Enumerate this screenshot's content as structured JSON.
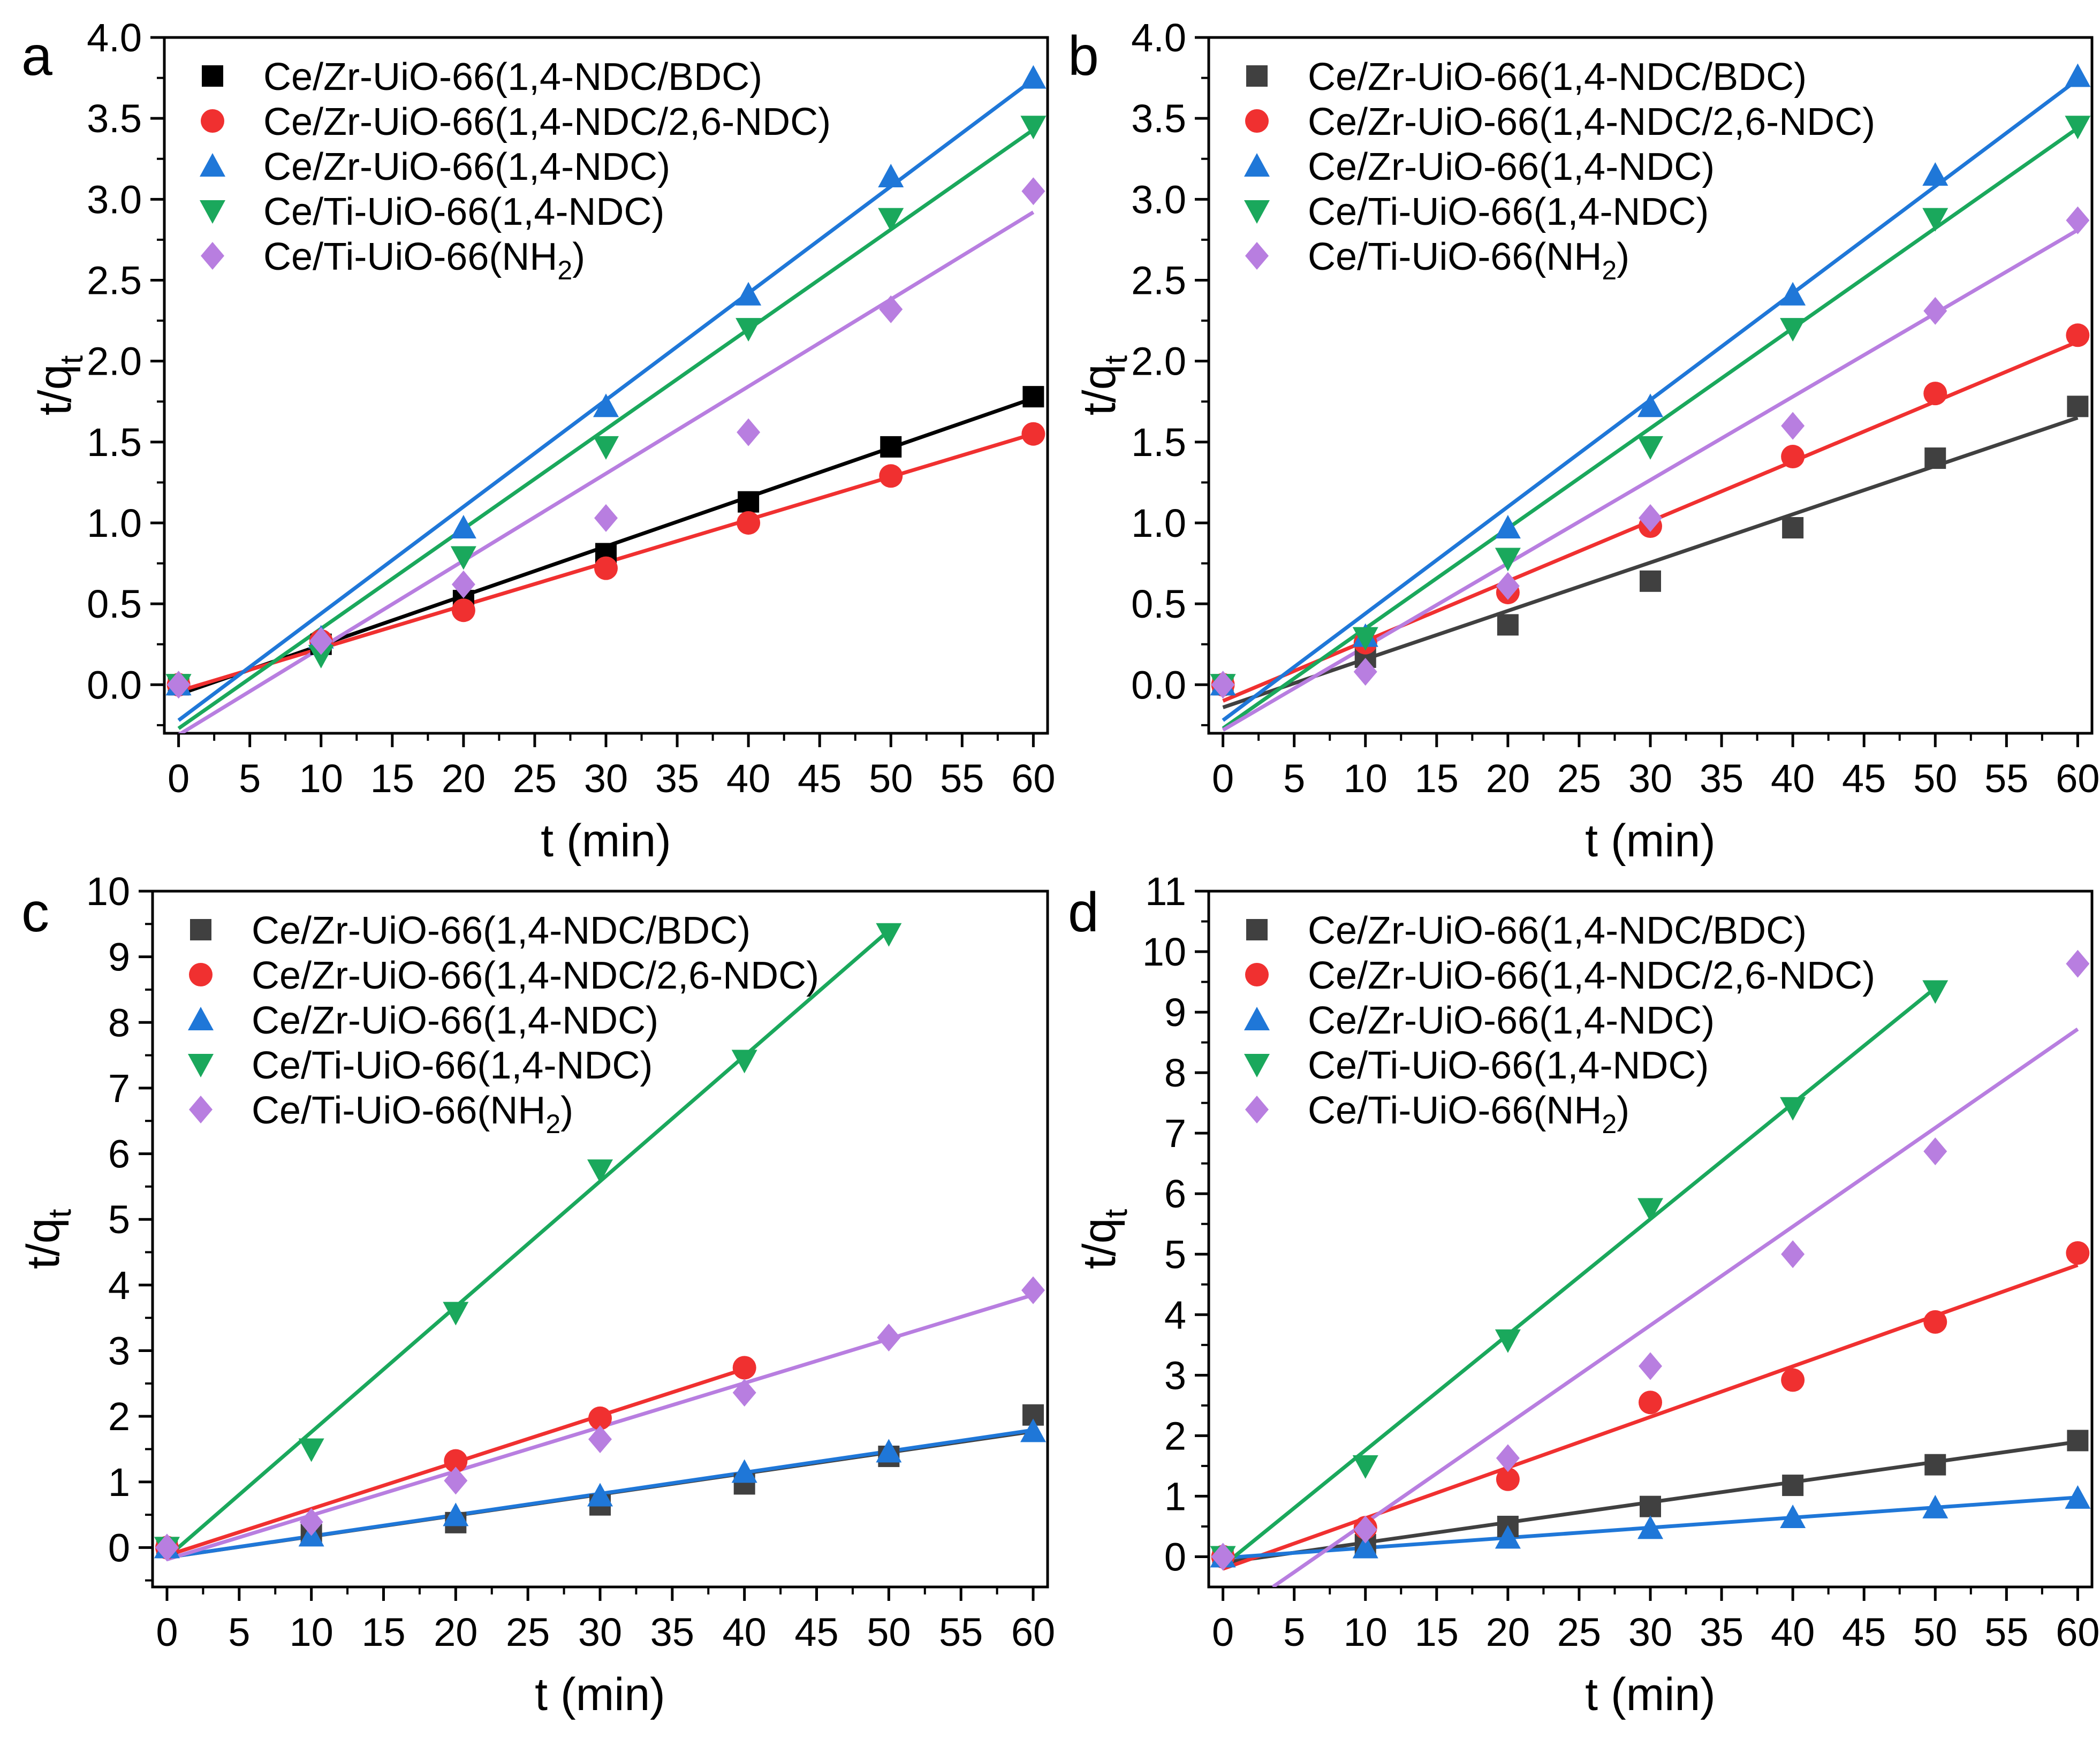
{
  "colors": {
    "Ce/Zr-UiO-66(1,4-NDC/BDC)": "#404040",
    "Ce/Zr-UiO-66(1,4-NDC/2,6-NDC)": "#f03030",
    "Ce/Zr-UiO-66(1,4-NDC)": "#1f77d8",
    "Ce/Ti-UiO-66(1,4-NDC)": "#1aa85c",
    "Ce/Ti-UiO-66(NH2)": "#b87ee0",
    "fit_a_bdc": "#000000"
  },
  "chart_data": [
    {
      "type": "scatter",
      "panel_label": "a",
      "xlabel": "t (min)",
      "ylabel": "t/q",
      "ylabel_sub": "t",
      "xlim": [
        -1,
        61
      ],
      "ylim": [
        -0.3,
        4.0
      ],
      "xticks": [
        "0",
        "5",
        "10",
        "15",
        "20",
        "25",
        "30",
        "35",
        "40",
        "45",
        "50",
        "55",
        "60"
      ],
      "yticks": [
        "0.0",
        "0.5",
        "1.0",
        "1.5",
        "2.0",
        "2.5",
        "3.0",
        "3.5",
        "4.0"
      ],
      "series": [
        {
          "name": "Ce/Zr-UiO-66(1,4-NDC/BDC)",
          "legend": "Ce/Zr-UiO-66(1,4-NDC/BDC)",
          "legend_sub": "",
          "legend_tail": "",
          "marker": "square",
          "marker_color": "#000000",
          "line_color": "#000000",
          "x": [
            0,
            10,
            20,
            30,
            40,
            50,
            60
          ],
          "y": [
            0.0,
            0.25,
            0.52,
            0.81,
            1.13,
            1.47,
            1.78
          ],
          "fit": [
            [
              0,
              -0.06
            ],
            [
              60,
              1.77
            ]
          ]
        },
        {
          "name": "Ce/Zr-UiO-66(1,4-NDC/2,6-NDC)",
          "legend": "Ce/Zr-UiO-66(1,4-NDC/2,6-NDC)",
          "legend_sub": "",
          "legend_tail": "",
          "marker": "circle",
          "x": [
            0,
            10,
            20,
            30,
            40,
            50,
            60
          ],
          "y": [
            0.0,
            0.27,
            0.46,
            0.72,
            1.0,
            1.29,
            1.55
          ],
          "fit": [
            [
              0,
              -0.04
            ],
            [
              60,
              1.55
            ]
          ]
        },
        {
          "name": "Ce/Zr-UiO-66(1,4-NDC)",
          "legend": "Ce/Zr-UiO-66(1,4-NDC)",
          "legend_sub": "",
          "legend_tail": "",
          "marker": "triangle-up",
          "x": [
            0,
            10,
            20,
            30,
            40,
            50,
            60
          ],
          "y": [
            0.0,
            0.29,
            0.97,
            1.72,
            2.41,
            3.14,
            3.75
          ],
          "fit": [
            [
              0,
              -0.22
            ],
            [
              60,
              3.74
            ]
          ]
        },
        {
          "name": "Ce/Ti-UiO-66(1,4-NDC)",
          "legend": "Ce/Ti-UiO-66(1,4-NDC)",
          "legend_sub": "",
          "legend_tail": "",
          "marker": "triangle-down",
          "x": [
            0,
            10,
            20,
            30,
            40,
            50,
            60
          ],
          "y": [
            0.0,
            0.18,
            0.79,
            1.47,
            2.2,
            2.88,
            3.45
          ],
          "fit": [
            [
              0,
              -0.27
            ],
            [
              60,
              3.43
            ]
          ]
        },
        {
          "name": "Ce/Ti-UiO-66(NH2)",
          "legend": "Ce/Ti-UiO-66(NH",
          "legend_sub": "2",
          "legend_tail": ")",
          "marker": "diamond",
          "x": [
            0,
            10,
            20,
            30,
            40,
            50,
            60
          ],
          "y": [
            0.0,
            0.27,
            0.62,
            1.03,
            1.56,
            2.32,
            3.05
          ],
          "fit": [
            [
              0,
              -0.31
            ],
            [
              60,
              2.92
            ]
          ]
        }
      ]
    },
    {
      "type": "scatter",
      "panel_label": "b",
      "xlabel": "t (min)",
      "ylabel": "t/q",
      "ylabel_sub": "t",
      "xlim": [
        -1,
        61
      ],
      "ylim": [
        -0.3,
        4.0
      ],
      "xticks": [
        "0",
        "5",
        "10",
        "15",
        "20",
        "25",
        "30",
        "35",
        "40",
        "45",
        "50",
        "55",
        "60"
      ],
      "yticks": [
        "0.0",
        "0.5",
        "1.0",
        "1.5",
        "2.0",
        "2.5",
        "3.0",
        "3.5",
        "4.0"
      ],
      "series": [
        {
          "name": "Ce/Zr-UiO-66(1,4-NDC/BDC)",
          "legend": "Ce/Zr-UiO-66(1,4-NDC/BDC)",
          "legend_sub": "",
          "legend_tail": "",
          "marker": "square",
          "x": [
            0,
            10,
            20,
            30,
            40,
            50,
            60
          ],
          "y": [
            0.0,
            0.17,
            0.37,
            0.64,
            0.97,
            1.4,
            1.72
          ],
          "fit": [
            [
              0,
              -0.14
            ],
            [
              60,
              1.65
            ]
          ]
        },
        {
          "name": "Ce/Zr-UiO-66(1,4-NDC/2,6-NDC)",
          "legend": "Ce/Zr-UiO-66(1,4-NDC/2,6-NDC)",
          "legend_sub": "",
          "legend_tail": "",
          "marker": "circle",
          "x": [
            0,
            10,
            20,
            30,
            40,
            50,
            60
          ],
          "y": [
            0.0,
            0.26,
            0.57,
            0.98,
            1.41,
            1.8,
            2.16
          ],
          "fit": [
            [
              0,
              -0.1
            ],
            [
              60,
              2.12
            ]
          ]
        },
        {
          "name": "Ce/Zr-UiO-66(1,4-NDC)",
          "legend": "Ce/Zr-UiO-66(1,4-NDC)",
          "legend_sub": "",
          "legend_tail": "",
          "marker": "triangle-up",
          "x": [
            0,
            10,
            20,
            30,
            40,
            50,
            60
          ],
          "y": [
            0.0,
            0.3,
            0.97,
            1.72,
            2.41,
            3.15,
            3.76
          ],
          "fit": [
            [
              0,
              -0.22
            ],
            [
              60,
              3.74
            ]
          ]
        },
        {
          "name": "Ce/Ti-UiO-66(1,4-NDC)",
          "legend": "Ce/Ti-UiO-66(1,4-NDC)",
          "legend_sub": "",
          "legend_tail": "",
          "marker": "triangle-down",
          "x": [
            0,
            10,
            20,
            30,
            40,
            50,
            60
          ],
          "y": [
            0.0,
            0.29,
            0.78,
            1.47,
            2.2,
            2.88,
            3.45
          ],
          "fit": [
            [
              0,
              -0.27
            ],
            [
              60,
              3.44
            ]
          ]
        },
        {
          "name": "Ce/Ti-UiO-66(NH2)",
          "legend": "Ce/Ti-UiO-66(NH",
          "legend_sub": "2",
          "legend_tail": ")",
          "marker": "diamond",
          "x": [
            0,
            10,
            20,
            30,
            40,
            50,
            60
          ],
          "y": [
            0.0,
            0.08,
            0.61,
            1.03,
            1.6,
            2.31,
            2.87
          ],
          "fit": [
            [
              0,
              -0.28
            ],
            [
              60,
              2.81
            ]
          ]
        }
      ]
    },
    {
      "type": "scatter",
      "panel_label": "c",
      "xlabel": "t (min)",
      "ylabel": "t/q",
      "ylabel_sub": "t",
      "xlim": [
        -1,
        61
      ],
      "ylim": [
        -0.6,
        10.0
      ],
      "xticks": [
        "0",
        "5",
        "10",
        "15",
        "20",
        "25",
        "30",
        "35",
        "40",
        "45",
        "50",
        "55",
        "60"
      ],
      "yticks": [
        "0",
        "1",
        "2",
        "3",
        "4",
        "5",
        "6",
        "7",
        "8",
        "9",
        "10"
      ],
      "series": [
        {
          "name": "Ce/Zr-UiO-66(1,4-NDC/BDC)",
          "legend": "Ce/Zr-UiO-66(1,4-NDC/BDC)",
          "legend_sub": "",
          "legend_tail": "",
          "marker": "square",
          "x": [
            0,
            10,
            20,
            30,
            40,
            50,
            60
          ],
          "y": [
            0.0,
            0.2,
            0.38,
            0.65,
            0.97,
            1.39,
            2.02
          ],
          "fit": [
            [
              0,
              -0.15
            ],
            [
              60,
              1.77
            ]
          ]
        },
        {
          "name": "Ce/Zr-UiO-66(1,4-NDC/2,6-NDC)",
          "legend": "Ce/Zr-UiO-66(1,4-NDC/2,6-NDC)",
          "legend_sub": "",
          "legend_tail": "",
          "marker": "circle",
          "x": [
            0,
            20,
            30,
            40
          ],
          "y": [
            0.0,
            1.32,
            1.97,
            2.74
          ],
          "fit": [
            [
              0,
              -0.12
            ],
            [
              40,
              2.72
            ]
          ]
        },
        {
          "name": "Ce/Zr-UiO-66(1,4-NDC)",
          "legend": "Ce/Zr-UiO-66(1,4-NDC)",
          "legend_sub": "",
          "legend_tail": "",
          "marker": "triangle-up",
          "x": [
            0,
            10,
            20,
            30,
            40,
            50,
            60
          ],
          "y": [
            0.0,
            0.18,
            0.49,
            0.79,
            1.15,
            1.46,
            1.77
          ],
          "fit": [
            [
              0,
              -0.15
            ],
            [
              60,
              1.79
            ]
          ]
        },
        {
          "name": "Ce/Ti-UiO-66(1,4-NDC)",
          "legend": "Ce/Ti-UiO-66(1,4-NDC)",
          "legend_sub": "",
          "legend_tail": "",
          "marker": "triangle-down",
          "x": [
            0,
            10,
            20,
            30,
            40,
            50
          ],
          "y": [
            0.0,
            1.5,
            3.58,
            5.75,
            7.42,
            9.35
          ],
          "fit": [
            [
              0,
              -0.15
            ],
            [
              50,
              9.4
            ]
          ]
        },
        {
          "name": "Ce/Ti-UiO-66(NH2)",
          "legend": "Ce/Ti-UiO-66(NH",
          "legend_sub": "2",
          "legend_tail": ")",
          "marker": "diamond",
          "x": [
            0,
            10,
            20,
            30,
            40,
            50,
            60
          ],
          "y": [
            0.0,
            0.39,
            1.02,
            1.65,
            2.36,
            3.2,
            3.92
          ],
          "fit": [
            [
              0,
              -0.18
            ],
            [
              60,
              3.85
            ]
          ]
        }
      ]
    },
    {
      "type": "scatter",
      "panel_label": "d",
      "xlabel": "t (min)",
      "ylabel": "t/q",
      "ylabel_sub": "t",
      "xlim": [
        -1,
        61
      ],
      "ylim": [
        -0.5,
        11.0
      ],
      "xticks": [
        "0",
        "5",
        "10",
        "15",
        "20",
        "25",
        "30",
        "35",
        "40",
        "45",
        "50",
        "55",
        "60"
      ],
      "yticks": [
        "0",
        "1",
        "2",
        "3",
        "4",
        "5",
        "6",
        "7",
        "8",
        "9",
        "10",
        "11"
      ],
      "series": [
        {
          "name": "Ce/Zr-UiO-66(1,4-NDC/BDC)",
          "legend": "Ce/Zr-UiO-66(1,4-NDC/BDC)",
          "legend_sub": "",
          "legend_tail": "",
          "marker": "square",
          "x": [
            0,
            10,
            20,
            30,
            40,
            50,
            60
          ],
          "y": [
            0.0,
            0.2,
            0.5,
            0.83,
            1.18,
            1.52,
            1.92
          ],
          "fit": [
            [
              0,
              -0.1
            ],
            [
              60,
              1.9
            ]
          ]
        },
        {
          "name": "Ce/Zr-UiO-66(1,4-NDC/2,6-NDC)",
          "legend": "Ce/Zr-UiO-66(1,4-NDC/2,6-NDC)",
          "legend_sub": "",
          "legend_tail": "",
          "marker": "circle",
          "x": [
            0,
            10,
            20,
            30,
            40,
            50,
            60
          ],
          "y": [
            0.0,
            0.48,
            1.28,
            2.55,
            2.92,
            3.88,
            5.02
          ],
          "fit": [
            [
              0,
              -0.2
            ],
            [
              60,
              4.82
            ]
          ]
        },
        {
          "name": "Ce/Zr-UiO-66(1,4-NDC)",
          "legend": "Ce/Zr-UiO-66(1,4-NDC)",
          "legend_sub": "",
          "legend_tail": "",
          "marker": "triangle-up",
          "x": [
            0,
            10,
            20,
            30,
            40,
            50,
            60
          ],
          "y": [
            0.0,
            0.15,
            0.31,
            0.47,
            0.65,
            0.81,
            0.97
          ],
          "fit": [
            [
              0,
              -0.02
            ],
            [
              60,
              0.98
            ]
          ]
        },
        {
          "name": "Ce/Ti-UiO-66(1,4-NDC)",
          "legend": "Ce/Ti-UiO-66(1,4-NDC)",
          "legend_sub": "",
          "legend_tail": "",
          "marker": "triangle-down",
          "x": [
            0,
            10,
            20,
            30,
            40,
            50
          ],
          "y": [
            0.0,
            1.5,
            3.58,
            5.75,
            7.42,
            9.35
          ],
          "fit": [
            [
              0,
              -0.15
            ],
            [
              50,
              9.4
            ]
          ]
        },
        {
          "name": "Ce/Ti-UiO-66(NH2)",
          "legend": "Ce/Ti-UiO-66(NH",
          "legend_sub": "2",
          "legend_tail": ")",
          "marker": "diamond",
          "x": [
            0,
            10,
            20,
            30,
            40,
            50,
            60
          ],
          "y": [
            0.0,
            0.45,
            1.63,
            3.15,
            5.0,
            6.7,
            9.8
          ],
          "fit": [
            [
              3.5,
              -0.5
            ],
            [
              60,
              8.72
            ]
          ]
        }
      ]
    }
  ]
}
